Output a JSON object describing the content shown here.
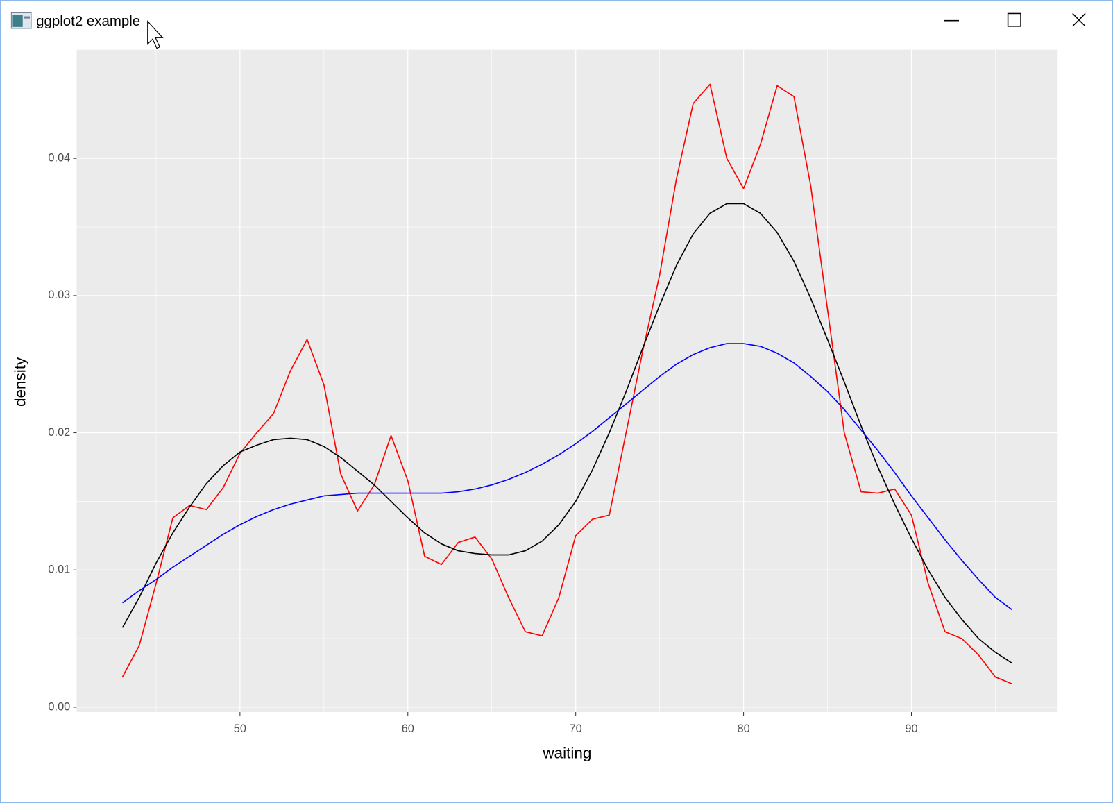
{
  "window": {
    "title": "ggplot2 example"
  },
  "chart_data": {
    "type": "line",
    "xlabel": "waiting",
    "ylabel": "density",
    "x": [
      43,
      44,
      45,
      46,
      47,
      48,
      49,
      50,
      51,
      52,
      53,
      54,
      55,
      56,
      57,
      58,
      59,
      60,
      61,
      62,
      63,
      64,
      65,
      66,
      67,
      68,
      69,
      70,
      71,
      72,
      73,
      74,
      75,
      76,
      77,
      78,
      79,
      80,
      81,
      82,
      83,
      84,
      85,
      86,
      87,
      88,
      89,
      90,
      91,
      92,
      93,
      94,
      95,
      96
    ],
    "series": [
      {
        "color": "#ff0000",
        "values": [
          0.0022,
          0.0045,
          0.009,
          0.0138,
          0.0147,
          0.0144,
          0.016,
          0.0185,
          0.02,
          0.0214,
          0.0245,
          0.0268,
          0.0235,
          0.017,
          0.0143,
          0.0162,
          0.0198,
          0.0165,
          0.011,
          0.0104,
          0.012,
          0.0124,
          0.0108,
          0.008,
          0.0055,
          0.0052,
          0.008,
          0.0125,
          0.0137,
          0.014,
          0.02,
          0.026,
          0.0315,
          0.0385,
          0.044,
          0.0454,
          0.04,
          0.0378,
          0.041,
          0.0453,
          0.0445,
          0.038,
          0.029,
          0.02,
          0.0157,
          0.0156,
          0.0159,
          0.014,
          0.009,
          0.0055,
          0.005,
          0.0038,
          0.0022,
          0.0017
        ]
      },
      {
        "color": "#000000",
        "values": [
          0.0058,
          0.008,
          0.0105,
          0.0127,
          0.0146,
          0.0163,
          0.0176,
          0.0186,
          0.0191,
          0.0195,
          0.0196,
          0.0195,
          0.019,
          0.0182,
          0.0172,
          0.0162,
          0.015,
          0.0138,
          0.0127,
          0.0119,
          0.0114,
          0.0112,
          0.0111,
          0.0111,
          0.0114,
          0.0121,
          0.0133,
          0.015,
          0.0173,
          0.02,
          0.023,
          0.0262,
          0.0293,
          0.0322,
          0.0345,
          0.036,
          0.0367,
          0.0367,
          0.036,
          0.0346,
          0.0325,
          0.0298,
          0.0268,
          0.0237,
          0.0205,
          0.0175,
          0.0148,
          0.0123,
          0.01,
          0.008,
          0.0064,
          0.005,
          0.004,
          0.0032
        ]
      },
      {
        "color": "#0000ff",
        "values": [
          0.0076,
          0.0085,
          0.0093,
          0.0102,
          0.011,
          0.0118,
          0.0126,
          0.0133,
          0.0139,
          0.0144,
          0.0148,
          0.0151,
          0.0154,
          0.0155,
          0.0156,
          0.0156,
          0.0156,
          0.0156,
          0.0156,
          0.0156,
          0.0157,
          0.0159,
          0.0162,
          0.0166,
          0.0171,
          0.0177,
          0.0184,
          0.0192,
          0.0201,
          0.0211,
          0.0221,
          0.0231,
          0.0241,
          0.025,
          0.0257,
          0.0262,
          0.0265,
          0.0265,
          0.0263,
          0.0258,
          0.0251,
          0.0241,
          0.023,
          0.0217,
          0.0202,
          0.0187,
          0.0171,
          0.0154,
          0.0138,
          0.0122,
          0.0107,
          0.0093,
          0.008,
          0.0071
        ]
      }
    ],
    "xlim": [
      40.27,
      98.71
    ],
    "ylim": [
      -0.00036,
      0.04792
    ],
    "xticks": [
      50,
      60,
      70,
      80,
      90
    ],
    "yticks": [
      {
        "value": 0,
        "label": "0.00"
      },
      {
        "value": 0.01,
        "label": "0.01"
      },
      {
        "value": 0.02,
        "label": "0.02"
      },
      {
        "value": 0.03,
        "label": "0.03"
      },
      {
        "value": 0.04,
        "label": "0.04"
      }
    ],
    "grid": true,
    "minor_grid": true,
    "background": "#ebebeb"
  }
}
